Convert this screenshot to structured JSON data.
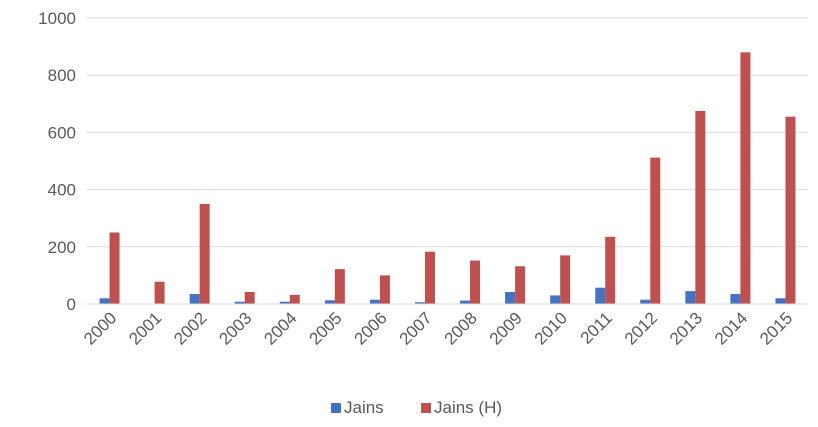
{
  "chart_data": {
    "type": "bar",
    "categories": [
      "2000",
      "2001",
      "2002",
      "2003",
      "2004",
      "2005",
      "2006",
      "2007",
      "2008",
      "2009",
      "2010",
      "2011",
      "2012",
      "2013",
      "2014",
      "2015"
    ],
    "series": [
      {
        "name": "Jains",
        "color": "#4472C4",
        "values": [
          20,
          0,
          35,
          8,
          8,
          13,
          15,
          6,
          12,
          42,
          30,
          57,
          15,
          45,
          35,
          20
        ]
      },
      {
        "name": "Jains (H)",
        "color": "#C0504D",
        "values": [
          250,
          78,
          350,
          42,
          32,
          122,
          100,
          183,
          152,
          132,
          170,
          235,
          512,
          675,
          880,
          655
        ]
      }
    ],
    "yticks": [
      "0",
      "200",
      "400",
      "600",
      "800",
      "1000"
    ],
    "ylim": [
      0,
      1000
    ],
    "grid": true,
    "legend": "bottom",
    "title": "",
    "xlabel": "",
    "ylabel": ""
  }
}
